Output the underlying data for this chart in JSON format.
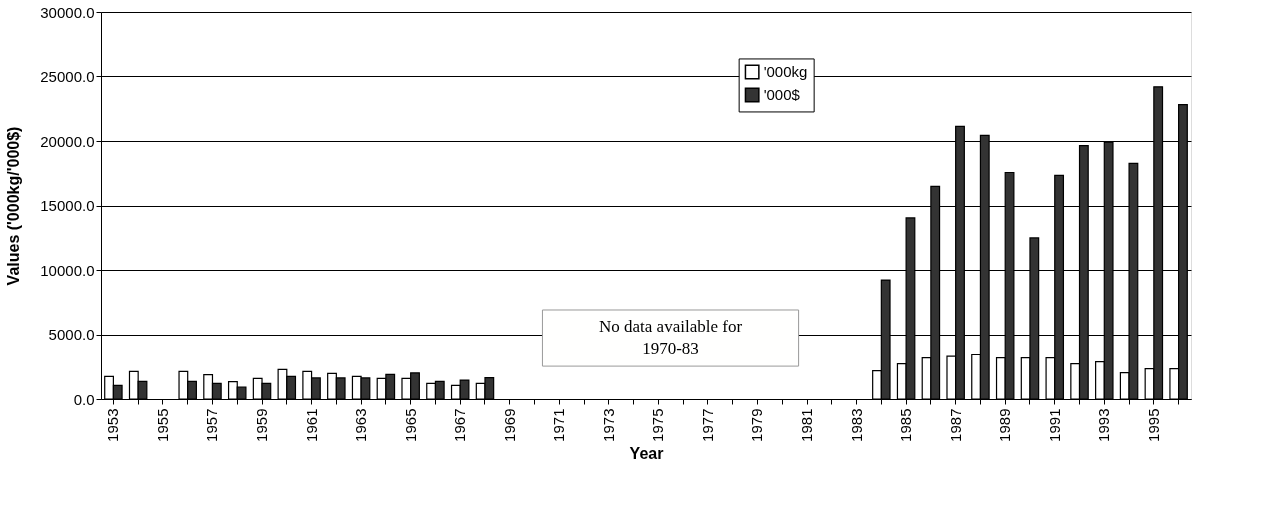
{
  "chart_data": {
    "type": "bar",
    "xlabel": "Year",
    "ylabel": "Values ('000kg/'000$)",
    "categories": [
      "1953",
      null,
      "1955",
      null,
      "1957",
      null,
      "1959",
      null,
      "1961",
      null,
      "1963",
      null,
      "1965",
      null,
      "1967",
      null,
      "1969",
      null,
      "1971",
      null,
      "1973",
      null,
      "1975",
      null,
      "1977",
      null,
      "1979",
      null,
      "1981",
      null,
      "1983",
      null,
      "1985",
      null,
      "1987",
      null,
      "1989",
      null,
      "1991",
      null,
      "1993",
      null,
      "1995",
      null
    ],
    "series": [
      {
        "name": "'000kg",
        "color": "#ffffff",
        "values": [
          1760,
          2140,
          null,
          2140,
          1890,
          1340,
          1600,
          2300,
          2140,
          1990,
          1760,
          1600,
          1600,
          1210,
          1060,
          1210,
          null,
          null,
          null,
          null,
          null,
          null,
          null,
          null,
          null,
          null,
          null,
          null,
          null,
          null,
          null,
          2200,
          2750,
          3210,
          3320,
          3450,
          3210,
          3210,
          3210,
          2750,
          2900,
          2050,
          2360,
          2360
        ]
      },
      {
        "name": "'000$",
        "color": "#333333",
        "values": [
          1060,
          1370,
          null,
          1370,
          1210,
          930,
          1210,
          1760,
          1630,
          1630,
          1630,
          1910,
          2020,
          1370,
          1470,
          1650,
          null,
          null,
          null,
          null,
          null,
          null,
          null,
          null,
          null,
          null,
          null,
          null,
          null,
          null,
          null,
          9220,
          14040,
          16480,
          21140,
          20440,
          17560,
          12490,
          17330,
          19640,
          19920,
          18260,
          24200,
          22820
        ]
      }
    ],
    "ylim": [
      0,
      30000
    ],
    "yticks": [
      {
        "value": 0,
        "label": "0.0"
      },
      {
        "value": 5000,
        "label": "5000.0"
      },
      {
        "value": 10000,
        "label": "10000.0"
      },
      {
        "value": 15000,
        "label": "15000.0"
      },
      {
        "value": 20000,
        "label": "20000.0"
      },
      {
        "value": 25000,
        "label": "25000.0"
      },
      {
        "value": 30000,
        "label": "30000.0"
      }
    ],
    "grid": "y",
    "legend": "top",
    "annotations": [
      "No data available for\n1970-83"
    ]
  }
}
